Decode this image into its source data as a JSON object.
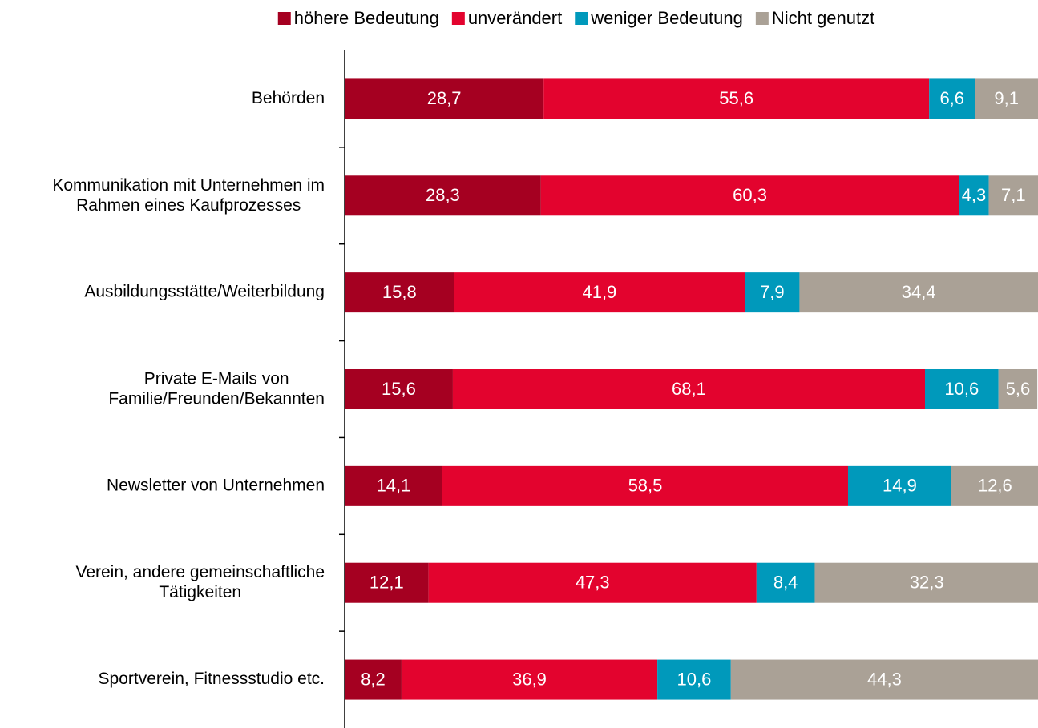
{
  "chart_data": {
    "type": "stacked-barh",
    "categories": [
      "Behörden",
      "Kommunikation mit Unternehmen im\nRahmen eines Kaufprozesses",
      "Ausbildungsstätte/Weiterbildung",
      "Private E-Mails von\nFamilie/Freunden/Bekannten",
      "Newsletter von Unternehmen",
      "Verein, andere gemeinschaftliche\nTätigkeiten",
      "Sportverein, Fitnessstudio etc."
    ],
    "xlim": [
      0,
      100
    ],
    "legend": "top",
    "series": [
      {
        "name": "höhere Bedeutung",
        "color": "#a50021",
        "values": [
          28.7,
          28.3,
          15.8,
          15.6,
          14.1,
          12.1,
          8.2
        ],
        "value_labels": [
          "28,7",
          "28,3",
          "15,8",
          "15,6",
          "14,1",
          "12,1",
          "8,2"
        ]
      },
      {
        "name": "unverändert",
        "color": "#e3032e",
        "values": [
          55.6,
          60.3,
          41.9,
          68.1,
          58.5,
          47.3,
          36.9
        ],
        "value_labels": [
          "55,6",
          "60,3",
          "41,9",
          "68,1",
          "58,5",
          "47,3",
          "36,9"
        ]
      },
      {
        "name": "weniger Bedeutung",
        "color": "#0099bb",
        "values": [
          6.6,
          4.3,
          7.9,
          10.6,
          14.9,
          8.4,
          10.6
        ],
        "value_labels": [
          "6,6",
          "4,3",
          "7,9",
          "10,6",
          "14,9",
          "8,4",
          "10,6"
        ]
      },
      {
        "name": "Nicht genutzt",
        "color": "#aaa196",
        "values": [
          9.1,
          7.1,
          34.4,
          5.6,
          12.6,
          32.3,
          44.3
        ],
        "value_labels": [
          "9,1",
          "7,1",
          "34,4",
          "5,6",
          "12,6",
          "32,3",
          "44,3"
        ]
      }
    ]
  }
}
